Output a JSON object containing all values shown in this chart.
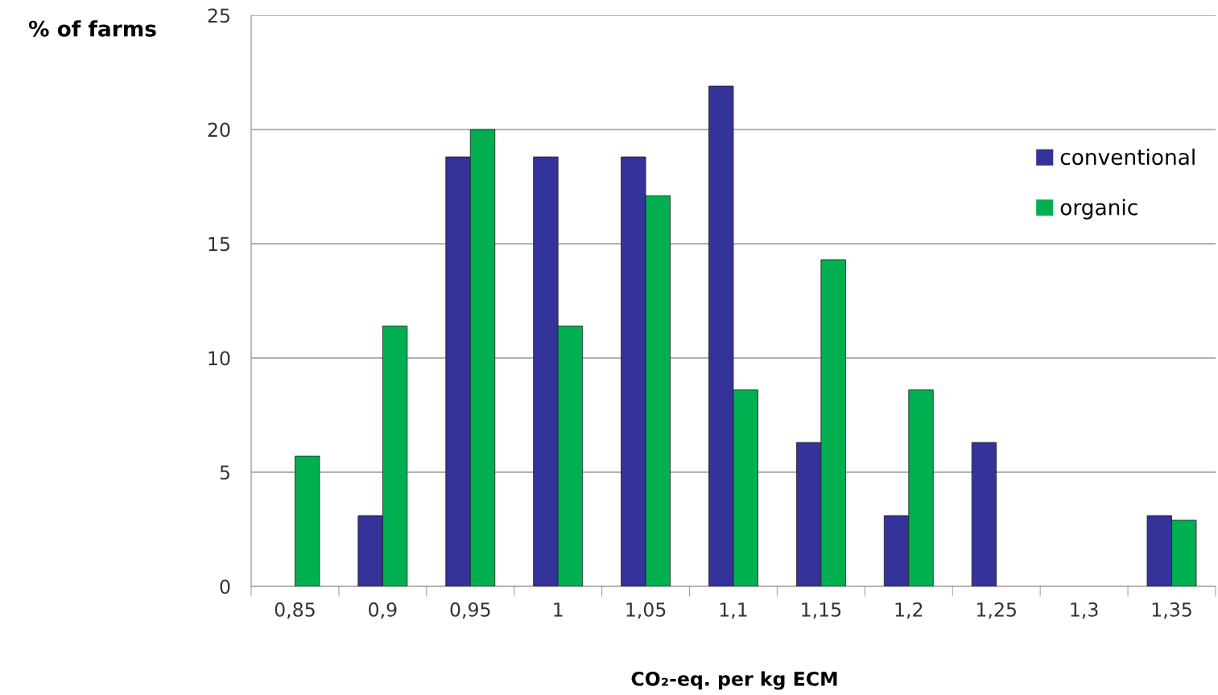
{
  "chart_data": {
    "type": "bar",
    "xlabel": "CO₂-eq. per kg ECM",
    "ylabel": "% of farms",
    "categories": [
      "0,85",
      "0,9",
      "0,95",
      "1",
      "1,05",
      "1,1",
      "1,15",
      "1,2",
      "1,25",
      "1,3",
      "1,35"
    ],
    "series": [
      {
        "name": "conventional",
        "color": "#333399",
        "values": [
          null,
          3.1,
          18.8,
          18.8,
          18.8,
          21.9,
          6.3,
          3.1,
          6.3,
          null,
          3.1
        ]
      },
      {
        "name": "organic",
        "color": "#00b050",
        "values": [
          5.7,
          11.4,
          20,
          11.4,
          17.1,
          8.6,
          14.3,
          8.6,
          null,
          null,
          2.9
        ]
      }
    ],
    "ylim": [
      0,
      25
    ],
    "yticks": [
      0,
      5,
      10,
      15,
      20,
      25
    ],
    "grid": "y",
    "legend": "top right"
  }
}
